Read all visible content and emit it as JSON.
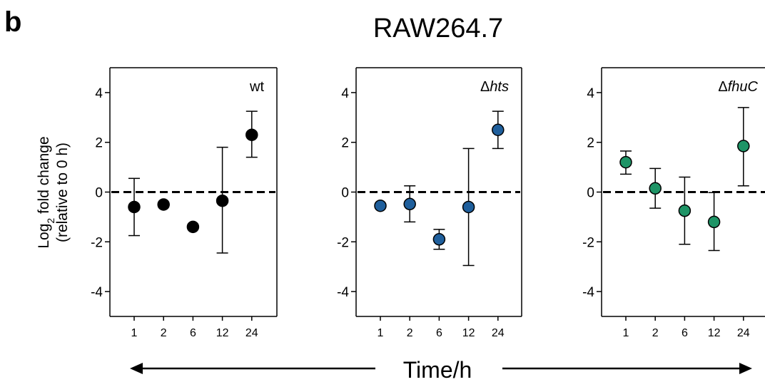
{
  "panel_label": "b",
  "figure_title": "RAW264.7",
  "y_axis": {
    "label_main": "Log",
    "label_sub": "2",
    "label_rest": " fold change",
    "label_line2": "(relative to 0 h)"
  },
  "x_axis": {
    "label": "Time/h"
  },
  "panels": [
    {
      "name": "wt",
      "prefix": "",
      "italic": false,
      "color": "#000000"
    },
    {
      "name": "hts",
      "prefix": "Δ",
      "italic": true,
      "color": "#1f5f9c"
    },
    {
      "name": "fhuC",
      "prefix": "Δ",
      "italic": true,
      "color": "#1e9466"
    }
  ],
  "chart_data": [
    {
      "type": "scatter",
      "title": "wt",
      "categories": [
        "1",
        "2",
        "6",
        "12",
        "24"
      ],
      "yticks": [
        "4",
        "2",
        "0",
        "-2",
        "-4"
      ],
      "ylim": [
        -5,
        5
      ],
      "reference_line": 0,
      "series": [
        {
          "values": [
            -0.6,
            -0.5,
            -1.4,
            -0.35,
            2.3
          ],
          "err_low": [
            -1.75,
            null,
            null,
            -2.45,
            1.4
          ],
          "err_high": [
            0.55,
            null,
            null,
            1.8,
            3.25
          ]
        }
      ]
    },
    {
      "type": "scatter",
      "title": "Δhts",
      "categories": [
        "1",
        "2",
        "6",
        "12",
        "24"
      ],
      "yticks": [
        "4",
        "2",
        "0",
        "-2",
        "-4"
      ],
      "ylim": [
        -5,
        5
      ],
      "reference_line": 0,
      "series": [
        {
          "values": [
            -0.55,
            -0.48,
            -1.9,
            -0.6,
            2.5
          ],
          "err_low": [
            null,
            -1.2,
            -2.3,
            -2.95,
            1.75
          ],
          "err_high": [
            null,
            0.25,
            -1.5,
            1.75,
            3.25
          ]
        }
      ]
    },
    {
      "type": "scatter",
      "title": "ΔfhuC",
      "categories": [
        "1",
        "2",
        "6",
        "12",
        "24"
      ],
      "yticks": [
        "4",
        "2",
        "0",
        "-2",
        "-4"
      ],
      "ylim": [
        -5,
        5
      ],
      "reference_line": 0,
      "series": [
        {
          "values": [
            1.2,
            0.15,
            -0.75,
            -1.2,
            1.85
          ],
          "err_low": [
            0.72,
            -0.65,
            -2.1,
            -2.35,
            0.25
          ],
          "err_high": [
            1.65,
            0.95,
            0.6,
            -0.02,
            3.4
          ]
        }
      ]
    }
  ]
}
